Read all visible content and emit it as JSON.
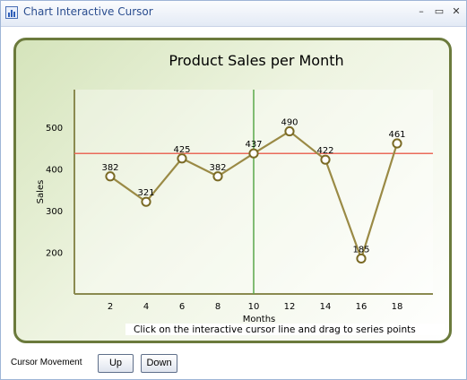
{
  "window": {
    "title": "Chart Interactive Cursor",
    "minimize_glyph": "–",
    "maximize_glyph": "▭",
    "close_glyph": "✕"
  },
  "chart_data": {
    "type": "line",
    "title": "Product Sales per Month",
    "xlabel": "Months",
    "ylabel": "Sales",
    "x": [
      2,
      4,
      6,
      8,
      10,
      12,
      14,
      16,
      18
    ],
    "x_ticks": [
      "2",
      "4",
      "6",
      "8",
      "10",
      "12",
      "14",
      "16",
      "18"
    ],
    "y_ticks": [
      "200",
      "300",
      "400",
      "500"
    ],
    "xlim": [
      0,
      20
    ],
    "ylim": [
      100,
      590
    ],
    "series": [
      {
        "values": [
          382,
          321,
          425,
          382,
          437,
          490,
          422,
          185,
          461
        ],
        "labels": [
          "382",
          "321",
          "425",
          "382",
          "437",
          "490",
          "422",
          "185",
          "461"
        ],
        "color": "#9a8a45"
      }
    ],
    "cursor": {
      "x": 10,
      "y": 437,
      "vertical_color": "#5aa84a",
      "horizontal_color": "#ea6a5a"
    },
    "hint": "Click on the interactive cursor line and drag to series points",
    "grid": false
  },
  "footer": {
    "label": "Cursor Movement",
    "up_label": "Up",
    "down_label": "Down"
  }
}
